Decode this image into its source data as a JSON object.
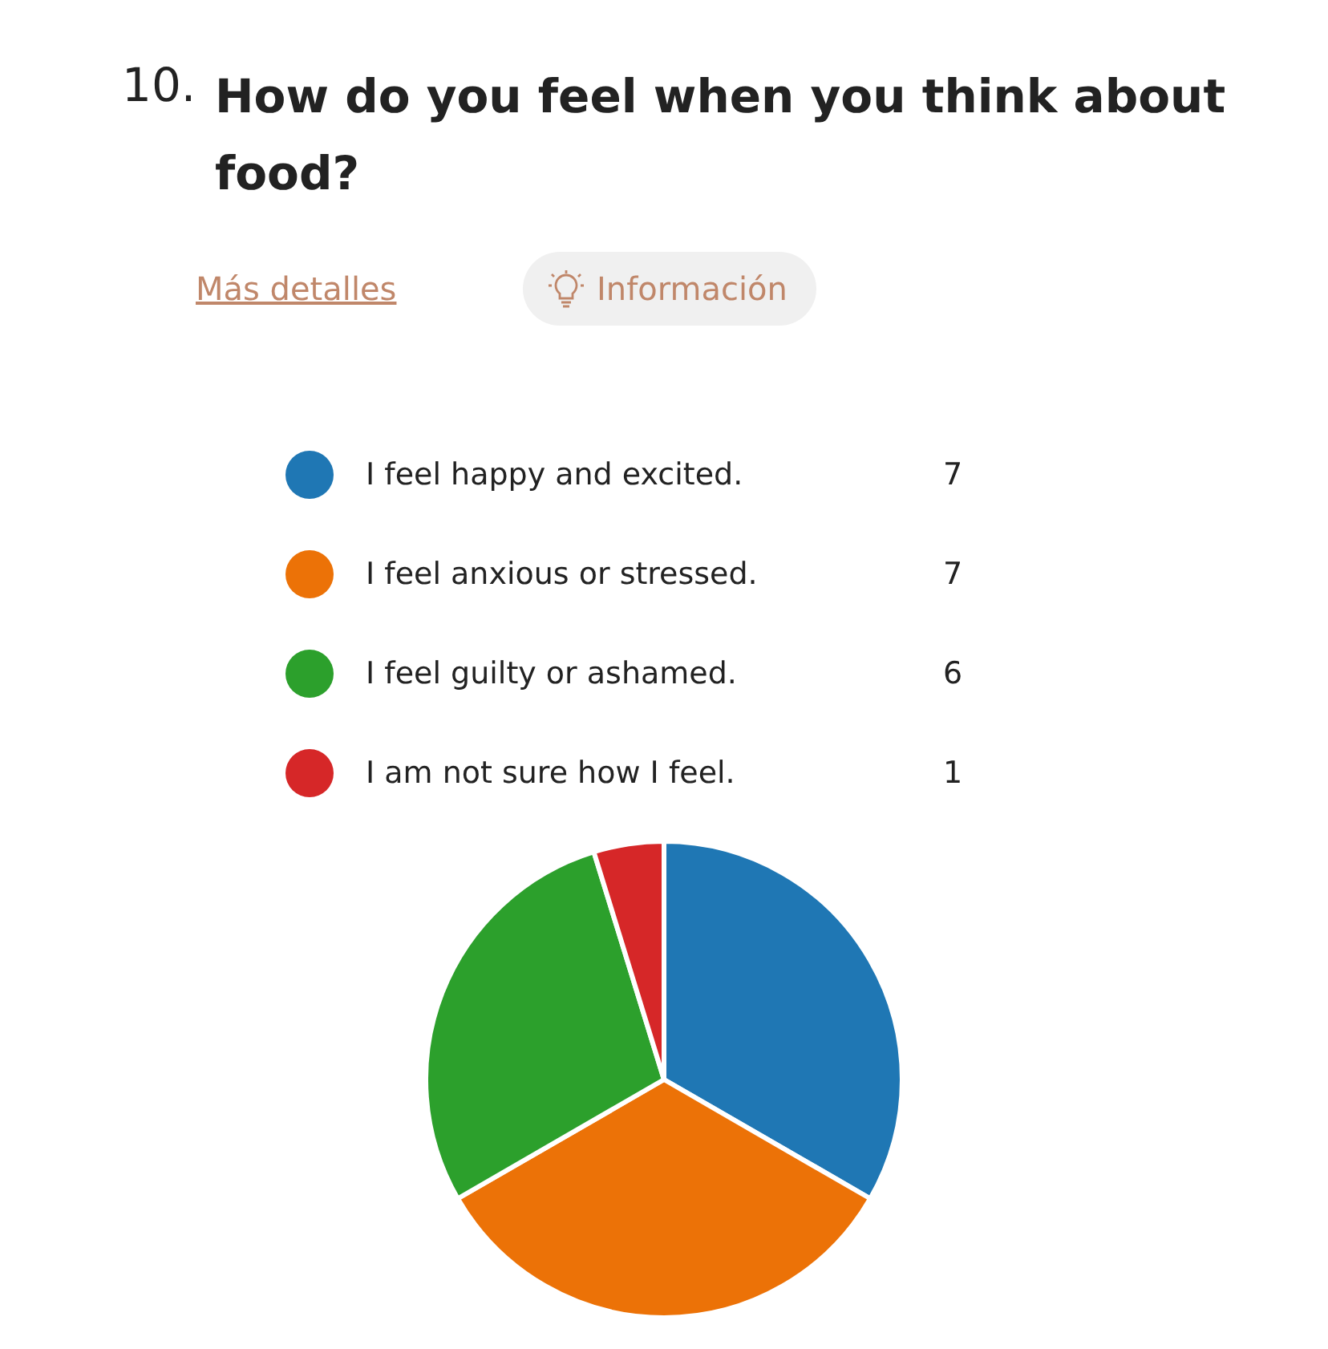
{
  "chart_data": {
    "type": "pie",
    "title": "How do you feel when you think about food?",
    "annotations": [
      "10.",
      "Más detalles",
      "Información"
    ],
    "categories": [
      "I feel happy and excited.",
      "I feel anxious or stressed.",
      "I feel guilty or ashamed.",
      "I am not sure how I feel."
    ],
    "values": [
      7,
      7,
      6,
      1
    ],
    "colors": [
      "#1f77b4",
      "#ec7207",
      "#2ca02c",
      "#d62728"
    ],
    "legend": "top",
    "data_labels": true
  }
}
